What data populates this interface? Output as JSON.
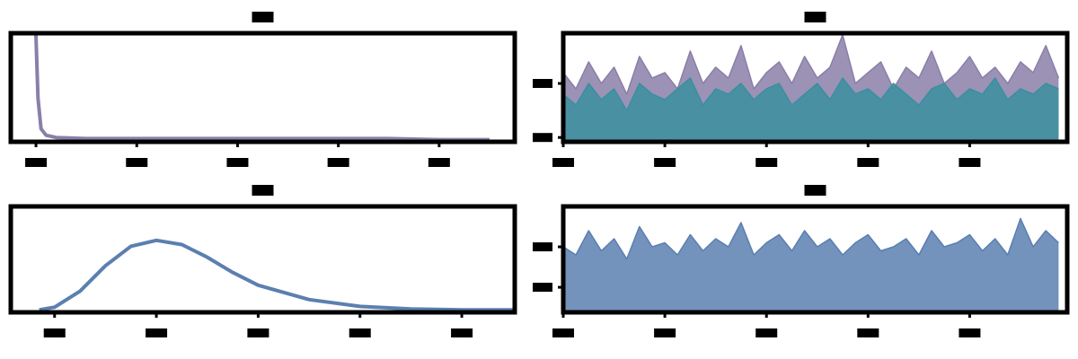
{
  "chart_data": [
    {
      "type": "line",
      "xlim": [
        -0.25,
        4.75
      ],
      "ylim": [
        0,
        1
      ],
      "xticks": [
        0,
        1,
        2,
        3,
        4
      ],
      "x": [
        0,
        0.02,
        0.05,
        0.1,
        0.2,
        0.5,
        1,
        1.5,
        2,
        2.5,
        3,
        3.5,
        4,
        4.5
      ],
      "series": [
        {
          "color": "#8a7fa8",
          "values": [
            0.98,
            0.4,
            0.12,
            0.06,
            0.04,
            0.03,
            0.03,
            0.03,
            0.03,
            0.03,
            0.03,
            0.03,
            0.02,
            0.02
          ]
        }
      ]
    },
    {
      "type": "area",
      "xlim": [
        0,
        4960
      ],
      "ylim": [
        -0.08,
        1.93
      ],
      "xticks": [
        0,
        1000,
        2000,
        3000,
        4000
      ],
      "yticks": [
        0,
        1
      ],
      "x": [
        0,
        125,
        250,
        375,
        500,
        625,
        750,
        875,
        1000,
        1125,
        1250,
        1375,
        1500,
        1625,
        1750,
        1875,
        2000,
        2125,
        2250,
        2375,
        2500,
        2625,
        2750,
        2875,
        3000,
        3125,
        3250,
        3375,
        3500,
        3625,
        3750,
        3875,
        4000,
        4125,
        4250,
        4375,
        4500,
        4625,
        4750,
        4875
      ],
      "series": [
        {
          "color": "#8a7fa8",
          "values": [
            1.2,
            0.9,
            1.4,
            1.0,
            1.3,
            0.8,
            1.5,
            1.1,
            1.2,
            0.9,
            1.6,
            1.0,
            1.3,
            1.1,
            1.7,
            0.9,
            1.2,
            1.4,
            1.0,
            1.5,
            1.1,
            1.3,
            1.9,
            1.0,
            1.2,
            1.4,
            0.9,
            1.3,
            1.1,
            1.6,
            1.0,
            1.2,
            1.5,
            1.1,
            1.3,
            1.0,
            1.4,
            1.2,
            1.7,
            1.1
          ]
        },
        {
          "color": "#3b8fa0",
          "values": [
            0.8,
            0.6,
            1.0,
            0.7,
            0.9,
            0.5,
            1.0,
            0.8,
            0.7,
            0.9,
            1.1,
            0.6,
            0.9,
            0.8,
            1.0,
            0.7,
            0.9,
            1.0,
            0.6,
            0.8,
            1.0,
            0.7,
            1.1,
            0.8,
            0.9,
            0.7,
            1.0,
            0.8,
            0.6,
            0.9,
            1.0,
            0.7,
            0.9,
            0.8,
            1.1,
            0.7,
            0.9,
            0.8,
            1.0,
            0.9
          ]
        }
      ]
    },
    {
      "type": "line",
      "xlim": [
        -0.43,
        4.52
      ],
      "ylim": [
        0,
        1.25
      ],
      "xticks": [
        0,
        1,
        2,
        3,
        4
      ],
      "x": [
        -0.15,
        0,
        0.25,
        0.5,
        0.75,
        1,
        1.25,
        1.5,
        1.75,
        2,
        2.5,
        3,
        3.5,
        4,
        4.5
      ],
      "series": [
        {
          "color": "#5b7fb0",
          "values": [
            0.03,
            0.06,
            0.25,
            0.55,
            0.78,
            0.85,
            0.8,
            0.65,
            0.47,
            0.32,
            0.15,
            0.07,
            0.04,
            0.03,
            0.03
          ]
        }
      ]
    },
    {
      "type": "area",
      "xlim": [
        0,
        4960
      ],
      "ylim": [
        0.38,
        3
      ],
      "xticks": [
        0,
        1000,
        2000,
        3000,
        4000
      ],
      "yticks": [
        1,
        2
      ],
      "x": [
        0,
        125,
        250,
        375,
        500,
        625,
        750,
        875,
        1000,
        1125,
        1250,
        1375,
        1500,
        1625,
        1750,
        1875,
        2000,
        2125,
        2250,
        2375,
        2500,
        2625,
        2750,
        2875,
        3000,
        3125,
        3250,
        3375,
        3500,
        3625,
        3750,
        3875,
        4000,
        4125,
        4250,
        4375,
        4500,
        4625,
        4750,
        4875
      ],
      "series": [
        {
          "color": "#5b7fb0",
          "values": [
            2.0,
            1.8,
            2.4,
            1.9,
            2.2,
            1.7,
            2.5,
            2.0,
            2.1,
            1.8,
            2.3,
            1.9,
            2.2,
            2.0,
            2.6,
            1.8,
            2.1,
            2.3,
            1.9,
            2.4,
            2.0,
            2.2,
            1.8,
            2.1,
            2.3,
            1.9,
            2.0,
            2.2,
            1.8,
            2.4,
            2.0,
            2.1,
            2.3,
            1.9,
            2.2,
            1.8,
            2.7,
            2.0,
            2.4,
            2.1
          ]
        }
      ]
    }
  ]
}
